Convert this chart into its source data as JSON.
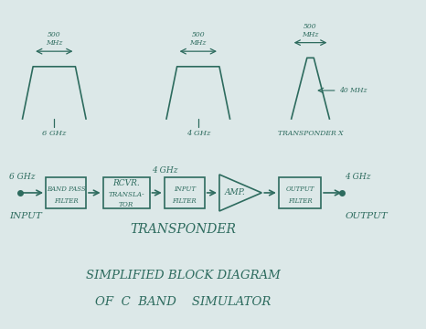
{
  "bg_color": "#dce8e8",
  "ink_color": "#2d6b5e",
  "title_line1": "SIMPLIFIED BLOCK DIAGRAM",
  "title_line2": "OF  C  BAND    SIMULATOR",
  "transponder_label": "TRANSPONDER",
  "fig_width": 4.66,
  "fig_height": 3.6,
  "dpi": 100
}
